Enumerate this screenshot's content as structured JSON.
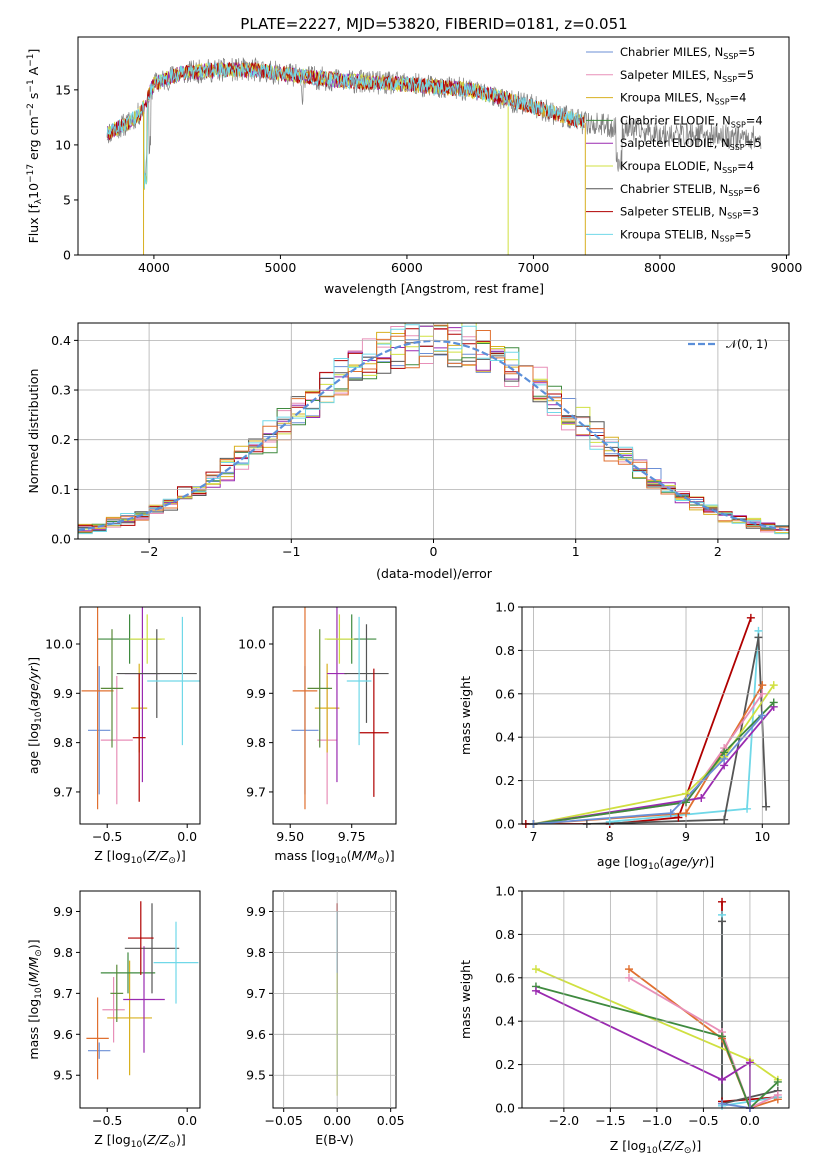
{
  "title": "PLATE=2227, MJD=53820, FIBERID=0181, z=0.051",
  "colors": {
    "Chabrier MILES": "#6b8fd6",
    "Salpeter MILES": "#e88fb8",
    "Kroupa MILES": "#d8b020",
    "Chabrier ELODIE": "#3f8a3f",
    "Salpeter ELODIE": "#9a2ab0",
    "Kroupa ELODIE": "#d0e040",
    "Chabrier STELIB": "#555555",
    "Salpeter STELIB": "#b00000",
    "Kroupa STELIB": "#70d8e8",
    "data": "#808080",
    "orange": "#e07030",
    "olive": "#5a8a3a",
    "normal": "#5b8fd9"
  },
  "chart_data": [
    {
      "type": "line",
      "panel": "spectrum",
      "xlabel": "wavelength [Angstrom, rest frame]",
      "ylabel": "Flux [f",
      "xlim": [
        3400,
        9020
      ],
      "ylim": [
        0,
        19.8
      ],
      "xticks": [
        "4000",
        "5000",
        "6000",
        "7000",
        "8000",
        "9000"
      ],
      "yticks": [
        "0",
        "5",
        "10",
        "15"
      ],
      "legend_position": "upper-right",
      "legend": [
        {
          "name": "Chabrier MILES",
          "label": "Chabrier MILES, N",
          "n": "5"
        },
        {
          "name": "Salpeter MILES",
          "label": "Salpeter MILES, N",
          "n": "5"
        },
        {
          "name": "Kroupa MILES",
          "label": "Kroupa MILES, N",
          "n": "4"
        },
        {
          "name": "Chabrier ELODIE",
          "label": "Chabrier ELODIE, N",
          "n": "4"
        },
        {
          "name": "Salpeter ELODIE",
          "label": "Salpeter ELODIE, N",
          "n": "5"
        },
        {
          "name": "Kroupa ELODIE",
          "label": "Kroupa ELODIE, N",
          "n": "4"
        },
        {
          "name": "Chabrier STELIB",
          "label": "Chabrier STELIB, N",
          "n": "6"
        },
        {
          "name": "Salpeter STELIB",
          "label": "Salpeter STELIB, N",
          "n": "3"
        },
        {
          "name": "Kroupa STELIB",
          "label": "Kroupa STELIB, N",
          "n": "5"
        }
      ],
      "continuum": [
        [
          3630,
          11
        ],
        [
          3700,
          11.5
        ],
        [
          3800,
          12
        ],
        [
          3900,
          13
        ],
        [
          4000,
          15.5
        ],
        [
          4200,
          16.5
        ],
        [
          4500,
          16.8
        ],
        [
          4800,
          16.8
        ],
        [
          5000,
          16.5
        ],
        [
          5200,
          16.2
        ],
        [
          5500,
          15.8
        ],
        [
          6000,
          15.5
        ],
        [
          6500,
          15
        ],
        [
          7000,
          13.5
        ],
        [
          7400,
          12
        ],
        [
          7700,
          11.5
        ],
        [
          8000,
          11
        ],
        [
          8500,
          10.8
        ],
        [
          8800,
          10.6
        ]
      ]
    },
    {
      "type": "histogram",
      "panel": "residuals",
      "xlabel": "(data-model)/error",
      "ylabel": "Normed distribution",
      "xlim": [
        -2.5,
        2.5
      ],
      "ylim": [
        0,
        0.435
      ],
      "xticks": [
        "−2",
        "−1",
        "0",
        "1",
        "2"
      ],
      "yticks": [
        "0.0",
        "0.1",
        "0.2",
        "0.3",
        "0.4"
      ],
      "legend": "𝒩(0, 1)",
      "legend_position": "upper-right",
      "bin_width": 0.1
    },
    {
      "type": "scatter",
      "panel": "age-vs-Z",
      "xlabel": "Z [log",
      "ylabel": "age  [log",
      "xlim": [
        -0.67,
        0.08
      ],
      "ylim": [
        9.635,
        10.075
      ],
      "xticks": [
        "−0.5",
        "0.0"
      ],
      "yticks": [
        "9.7",
        "9.8",
        "9.9",
        "10.0"
      ],
      "points": [
        {
          "series": "Chabrier MILES",
          "x": -0.55,
          "y": 9.825,
          "xerr": 0.07,
          "yerr": 0.13
        },
        {
          "series": "Salpeter MILES",
          "x": -0.44,
          "y": 9.805,
          "xerr": 0.1,
          "yerr": 0.13
        },
        {
          "series": "Kroupa MILES",
          "x": -0.3,
          "y": 9.87,
          "xerr": 0.05,
          "yerr": 0.09
        },
        {
          "series": "Chabrier ELODIE",
          "x": -0.36,
          "y": 10.01,
          "xerr": 0.2,
          "yerr": 0.05
        },
        {
          "series": "Salpeter ELODIE",
          "x": -0.28,
          "y": 9.94,
          "xerr": 0.11,
          "yerr": 0.22
        },
        {
          "series": "Kroupa ELODIE",
          "x": -0.25,
          "y": 10.01,
          "xerr": 0.11,
          "yerr": 0.05
        },
        {
          "series": "Chabrier STELIB",
          "x": -0.19,
          "y": 9.94,
          "xerr": 0.25,
          "yerr": 0.09
        },
        {
          "series": "Salpeter STELIB",
          "x": -0.3,
          "y": 9.81,
          "xerr": 0.04,
          "yerr": 0.13
        },
        {
          "series": "Kroupa STELIB",
          "x": -0.03,
          "y": 9.925,
          "xerr": 0.22,
          "yerr": 0.13
        },
        {
          "series": "orange",
          "x": -0.56,
          "y": 9.905,
          "xerr": 0.1,
          "yerr": 0.24
        },
        {
          "series": "olive",
          "x": -0.47,
          "y": 9.91,
          "xerr": 0.07,
          "yerr": 0.12
        }
      ]
    },
    {
      "type": "scatter",
      "panel": "age-vs-mass",
      "xlabel": "mass [log",
      "ylabel": "",
      "xlim": [
        9.43,
        9.93
      ],
      "ylim": [
        9.635,
        10.075
      ],
      "xticks": [
        "9.50",
        "9.75"
      ],
      "yticks": [
        "9.7",
        "9.8",
        "9.9",
        "10.0"
      ],
      "points": [
        {
          "series": "Chabrier MILES",
          "x": 9.56,
          "y": 9.825,
          "xerr": 0.055,
          "yerr": 0.13
        },
        {
          "series": "Salpeter MILES",
          "x": 9.65,
          "y": 9.805,
          "xerr": 0.04,
          "yerr": 0.13
        },
        {
          "series": "Kroupa MILES",
          "x": 9.65,
          "y": 9.87,
          "xerr": 0.05,
          "yerr": 0.09
        },
        {
          "series": "Chabrier ELODIE",
          "x": 9.75,
          "y": 10.01,
          "xerr": 0.1,
          "yerr": 0.05
        },
        {
          "series": "Salpeter ELODIE",
          "x": 9.69,
          "y": 9.94,
          "xerr": 0.04,
          "yerr": 0.22
        },
        {
          "series": "Kroupa ELODIE",
          "x": 9.7,
          "y": 10.01,
          "xerr": 0.06,
          "yerr": 0.05
        },
        {
          "series": "Chabrier STELIB",
          "x": 9.81,
          "y": 9.94,
          "xerr": 0.09,
          "yerr": 0.1
        },
        {
          "series": "Salpeter STELIB",
          "x": 9.84,
          "y": 9.82,
          "xerr": 0.06,
          "yerr": 0.13
        },
        {
          "series": "Kroupa STELIB",
          "x": 9.78,
          "y": 9.925,
          "xerr": 0.05,
          "yerr": 0.13
        },
        {
          "series": "orange",
          "x": 9.56,
          "y": 9.905,
          "xerr": 0.05,
          "yerr": 0.24
        },
        {
          "series": "olive",
          "x": 9.62,
          "y": 9.91,
          "xerr": 0.05,
          "yerr": 0.12
        }
      ]
    },
    {
      "type": "line",
      "panel": "mass-weight-vs-age",
      "xlabel": "age  [log",
      "ylabel": "mass weight",
      "xlim": [
        6.85,
        10.35
      ],
      "ylim": [
        0,
        1.0
      ],
      "xticks": [
        "7",
        "8",
        "9",
        "10"
      ],
      "yticks": [
        "0.0",
        "0.2",
        "0.4",
        "0.6",
        "0.8",
        "1.0"
      ],
      "series": [
        {
          "name": "Salpeter STELIB",
          "points": [
            [
              6.9,
              0.0
            ],
            [
              8.0,
              0.0
            ],
            [
              8.9,
              0.03
            ],
            [
              9.85,
              0.95
            ]
          ]
        },
        {
          "name": "Kroupa STELIB",
          "points": [
            [
              8.0,
              0.01
            ],
            [
              9.8,
              0.07
            ],
            [
              9.95,
              0.89
            ]
          ]
        },
        {
          "name": "Chabrier STELIB",
          "points": [
            [
              7.7,
              0.0
            ],
            [
              9.5,
              0.02
            ],
            [
              9.95,
              0.86
            ],
            [
              10.05,
              0.08
            ]
          ]
        },
        {
          "name": "orange",
          "points": [
            [
              7.0,
              0.0
            ],
            [
              9.0,
              0.05
            ],
            [
              10.0,
              0.64
            ]
          ]
        },
        {
          "name": "Salpeter MILES",
          "points": [
            [
              7.0,
              0.0
            ],
            [
              9.0,
              0.1
            ],
            [
              9.5,
              0.35
            ],
            [
              10.0,
              0.6
            ]
          ]
        },
        {
          "name": "Kroupa ELODIE",
          "points": [
            [
              7.0,
              0.0
            ],
            [
              9.0,
              0.14
            ],
            [
              9.5,
              0.31
            ],
            [
              10.15,
              0.64
            ]
          ]
        },
        {
          "name": "Salpeter ELODIE",
          "points": [
            [
              7.0,
              0.0
            ],
            [
              9.2,
              0.12
            ],
            [
              9.5,
              0.27
            ],
            [
              10.15,
              0.54
            ]
          ]
        },
        {
          "name": "Chabrier ELODIE",
          "points": [
            [
              7.0,
              0.0
            ],
            [
              9.0,
              0.1
            ],
            [
              9.5,
              0.33
            ],
            [
              10.15,
              0.56
            ]
          ]
        },
        {
          "name": "Chabrier MILES",
          "points": [
            [
              7.0,
              0.0
            ],
            [
              8.8,
              0.05
            ],
            [
              9.5,
              0.3
            ],
            [
              10.0,
              0.5
            ]
          ]
        }
      ]
    },
    {
      "type": "scatter",
      "panel": "mass-vs-Z",
      "xlabel": "Z [log",
      "ylabel": "mass [log",
      "xlim": [
        -0.67,
        0.08
      ],
      "ylim": [
        9.42,
        9.95
      ],
      "xticks": [
        "−0.5",
        "0.0"
      ],
      "yticks": [
        "9.5",
        "9.6",
        "9.7",
        "9.8",
        "9.9"
      ],
      "points": [
        {
          "series": "Chabrier MILES",
          "x": -0.55,
          "y": 9.56,
          "xerr": 0.07,
          "yerr": 0.02
        },
        {
          "series": "orange",
          "x": -0.56,
          "y": 9.59,
          "xerr": 0.07,
          "yerr": 0.1
        },
        {
          "series": "Salpeter MILES",
          "x": -0.46,
          "y": 9.66,
          "xerr": 0.07,
          "yerr": 0.08
        },
        {
          "series": "Kroupa MILES",
          "x": -0.36,
          "y": 9.64,
          "xerr": 0.14,
          "yerr": 0.14
        },
        {
          "series": "Chabrier ELODIE",
          "x": -0.37,
          "y": 9.75,
          "xerr": 0.17,
          "yerr": 0.05
        },
        {
          "series": "Salpeter ELODIE",
          "x": -0.27,
          "y": 9.685,
          "xerr": 0.13,
          "yerr": 0.13
        },
        {
          "series": "Chabrier STELIB",
          "x": -0.22,
          "y": 9.81,
          "xerr": 0.17,
          "yerr": 0.11
        },
        {
          "series": "Salpeter STELIB",
          "x": -0.29,
          "y": 9.835,
          "xerr": 0.08,
          "yerr": 0.09
        },
        {
          "series": "Kroupa STELIB",
          "x": -0.07,
          "y": 9.775,
          "xerr": 0.14,
          "yerr": 0.1
        },
        {
          "series": "olive",
          "x": -0.44,
          "y": 9.7,
          "xerr": 0.04,
          "yerr": 0.07
        }
      ]
    },
    {
      "type": "scatter",
      "panel": "mass-vs-EBV",
      "xlabel": "E(B-V)",
      "ylabel": "",
      "xlim": [
        -0.06,
        0.055
      ],
      "ylim": [
        9.42,
        9.95
      ],
      "xticks": [
        "−0.05",
        "0.00",
        "0.05"
      ],
      "yticks": [
        "9.5",
        "9.6",
        "9.7",
        "9.8",
        "9.9"
      ],
      "points": [
        {
          "series": "Salpeter STELIB",
          "x": 0.0,
          "y": 9.81,
          "xerr": 0,
          "yerr": 0.11
        },
        {
          "series": "Kroupa STELIB",
          "x": 0.0,
          "y": 9.7,
          "xerr": 0,
          "yerr": 0.2
        },
        {
          "series": "Kroupa ELODIE",
          "x": 0.0,
          "y": 9.6,
          "xerr": 0,
          "yerr": 0.15
        }
      ]
    },
    {
      "type": "line",
      "panel": "mass-weight-vs-Z",
      "xlabel": "Z [log",
      "ylabel": "mass weight",
      "xlim": [
        -2.45,
        0.42
      ],
      "ylim": [
        0,
        1.0
      ],
      "xticks": [
        "−2.0",
        "−1.5",
        "−1.0",
        "−0.5",
        "0.0"
      ],
      "yticks": [
        "0.0",
        "0.2",
        "0.4",
        "0.6",
        "0.8",
        "1.0"
      ],
      "series": [
        {
          "name": "Salpeter STELIB",
          "points": [
            [
              -0.3,
              0.95
            ],
            [
              -0.3,
              0.03
            ],
            [
              0.3,
              0.05
            ]
          ]
        },
        {
          "name": "Kroupa STELIB",
          "points": [
            [
              -0.3,
              0.89
            ],
            [
              -0.3,
              0.01
            ],
            [
              0.3,
              0.05
            ]
          ]
        },
        {
          "name": "Chabrier STELIB",
          "points": [
            [
              -0.3,
              0.86
            ],
            [
              -0.3,
              0.02
            ],
            [
              0.3,
              0.08
            ]
          ]
        },
        {
          "name": "orange",
          "points": [
            [
              -1.3,
              0.64
            ],
            [
              -0.3,
              0.32
            ],
            [
              0.0,
              0.0
            ],
            [
              0.3,
              0.04
            ]
          ]
        },
        {
          "name": "Salpeter MILES",
          "points": [
            [
              -1.3,
              0.6
            ],
            [
              -0.3,
              0.35
            ],
            [
              0.0,
              0.0
            ],
            [
              0.3,
              0.06
            ]
          ]
        },
        {
          "name": "Kroupa ELODIE",
          "points": [
            [
              -2.3,
              0.64
            ],
            [
              0.0,
              0.22
            ],
            [
              0.3,
              0.13
            ]
          ]
        },
        {
          "name": "Chabrier ELODIE",
          "points": [
            [
              -2.3,
              0.56
            ],
            [
              -0.3,
              0.33
            ],
            [
              0.0,
              0.0
            ],
            [
              0.3,
              0.12
            ]
          ]
        },
        {
          "name": "Salpeter ELODIE",
          "points": [
            [
              -2.3,
              0.54
            ],
            [
              -0.3,
              0.13
            ],
            [
              0.0,
              0.21
            ],
            [
              0.0,
              0.0
            ]
          ]
        },
        {
          "name": "Chabrier MILES",
          "points": [
            [
              -0.3,
              0.02
            ],
            [
              0.0,
              0.0
            ]
          ]
        }
      ]
    }
  ]
}
